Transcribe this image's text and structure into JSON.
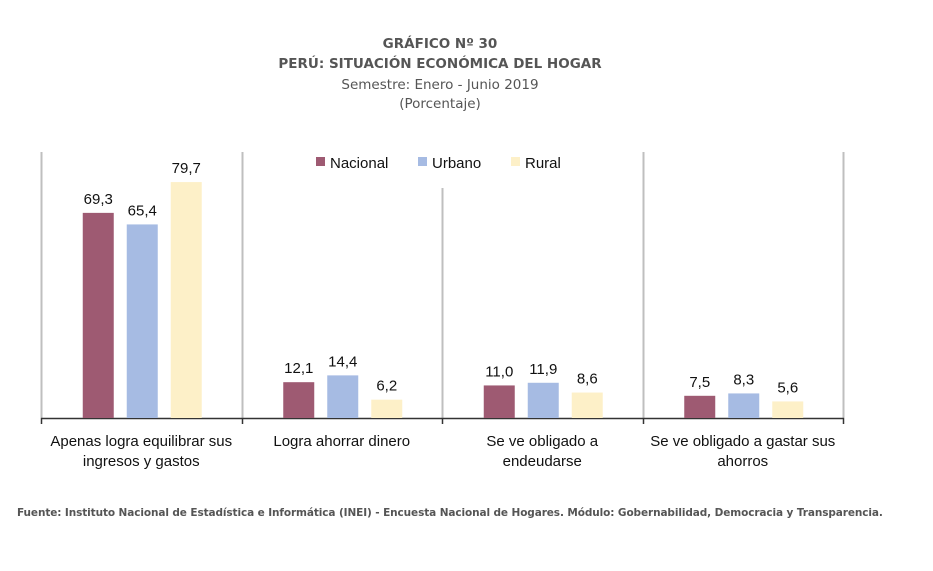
{
  "header": {
    "chart_number": "GRÁFICO Nº 30",
    "title": "PERÚ: SITUACIÓN ECONÓMICA DEL HOGAR",
    "subtitle": "Semestre: Enero - Junio 2019",
    "unit": "(Porcentaje)"
  },
  "source": "Fuente: Instituto Nacional de Estadística e Informática (INEI) - Encuesta Nacional de Hogares. Módulo: Gobernabilidad, Democracia y Transparencia.",
  "chart_data": {
    "type": "bar",
    "title": "PERÚ: SITUACIÓN ECONÓMICA DEL HOGAR",
    "subtitle": "Semestre: Enero - Junio 2019 (Porcentaje)",
    "xlabel": "",
    "ylabel": "",
    "ylim": [
      0,
      90
    ],
    "grid": false,
    "legend_position": "top-center",
    "categories": [
      [
        "Apenas logra equilibrar sus",
        "ingresos y gastos"
      ],
      [
        "Logra ahorrar dinero"
      ],
      [
        "Se ve obligado a",
        "endeudarse"
      ],
      [
        "Se ve obligado a gastar sus",
        "ahorros"
      ]
    ],
    "series": [
      {
        "name": "Nacional",
        "color": "#9E5A72",
        "values": [
          69.3,
          12.1,
          11.0,
          7.5
        ],
        "labels": [
          "69,3",
          "12,1",
          "11,0",
          "7,5"
        ]
      },
      {
        "name": "Urbano",
        "color": "#A6BBE3",
        "values": [
          65.4,
          14.4,
          11.9,
          8.3
        ],
        "labels": [
          "65,4",
          "14,4",
          "11,9",
          "8,3"
        ]
      },
      {
        "name": "Rural",
        "color": "#FDF0C8",
        "values": [
          79.7,
          6.2,
          8.6,
          5.6
        ],
        "labels": [
          "79,7",
          "6,2",
          "8,6",
          "5,6"
        ]
      }
    ]
  }
}
